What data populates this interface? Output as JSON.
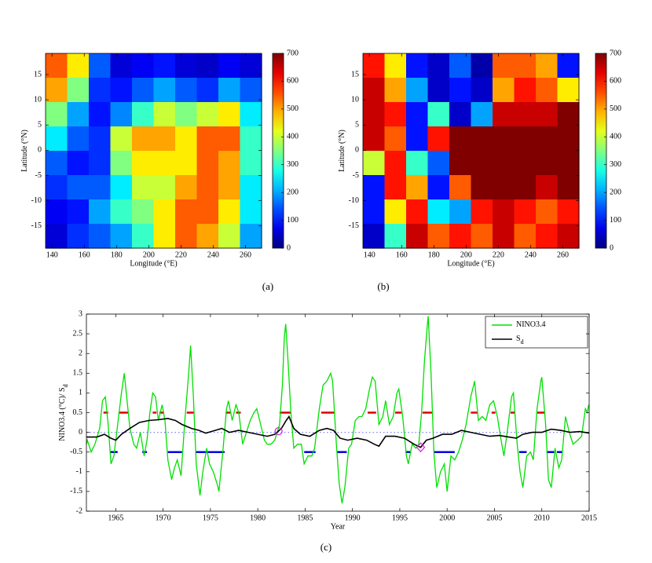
{
  "chart_data": [
    {
      "type": "heatmap",
      "panel_label": "(a)",
      "xlabel": "Longitude (°E)",
      "ylabel": "Latitude (°N)",
      "colormap": "jet",
      "xlim": [
        136,
        270
      ],
      "ylim": [
        -19.4,
        19.2
      ],
      "xticks": [
        140,
        160,
        180,
        200,
        220,
        240,
        260
      ],
      "yticks": [
        -15,
        -10,
        -5,
        0,
        5,
        10,
        15
      ],
      "clim": [
        0,
        700
      ],
      "cticks": [
        0,
        100,
        200,
        300,
        400,
        500,
        600,
        700
      ],
      "z": [
        [
          550,
          450,
          150,
          60,
          80,
          100,
          60,
          50,
          80,
          60
        ],
        [
          500,
          350,
          120,
          100,
          150,
          200,
          150,
          120,
          200,
          150
        ],
        [
          350,
          200,
          100,
          180,
          300,
          400,
          350,
          400,
          450,
          250
        ],
        [
          250,
          150,
          120,
          400,
          500,
          500,
          450,
          550,
          550,
          300
        ],
        [
          150,
          100,
          120,
          350,
          450,
          450,
          450,
          550,
          500,
          300
        ],
        [
          120,
          150,
          150,
          250,
          400,
          400,
          500,
          550,
          500,
          250
        ],
        [
          80,
          100,
          200,
          300,
          350,
          450,
          550,
          550,
          450,
          250
        ],
        [
          60,
          120,
          150,
          200,
          300,
          450,
          550,
          500,
          400,
          200
        ]
      ]
    },
    {
      "type": "heatmap",
      "panel_label": "(b)",
      "xlabel": "Longitude (°E)",
      "ylabel": "Latitude (°N)",
      "colormap": "jet",
      "xlim": [
        136,
        270
      ],
      "ylim": [
        -19.4,
        19.2
      ],
      "xticks": [
        140,
        160,
        180,
        200,
        220,
        240,
        260
      ],
      "yticks": [
        -15,
        -10,
        -5,
        0,
        5,
        10,
        15
      ],
      "clim": [
        0,
        700
      ],
      "cticks": [
        0,
        100,
        200,
        300,
        400,
        500,
        600,
        700
      ],
      "z": [
        [
          600,
          450,
          100,
          50,
          150,
          30,
          550,
          550,
          500,
          100
        ],
        [
          650,
          500,
          200,
          50,
          100,
          50,
          500,
          600,
          550,
          450
        ],
        [
          650,
          600,
          100,
          300,
          50,
          200,
          650,
          650,
          650,
          700
        ],
        [
          650,
          550,
          100,
          600,
          700,
          700,
          700,
          700,
          700,
          700
        ],
        [
          400,
          600,
          300,
          150,
          700,
          700,
          700,
          700,
          700,
          700
        ],
        [
          100,
          600,
          500,
          100,
          550,
          700,
          700,
          700,
          650,
          700
        ],
        [
          100,
          450,
          600,
          250,
          200,
          600,
          650,
          600,
          550,
          600
        ],
        [
          50,
          300,
          650,
          550,
          600,
          550,
          650,
          550,
          600,
          650
        ]
      ]
    },
    {
      "type": "line",
      "panel_label": "(c)",
      "xlabel": "Year",
      "ylabel": "NINO3.4 (°C)/ S",
      "ylabel_sub": "d",
      "xlim": [
        1961.9,
        2015
      ],
      "ylim": [
        -2,
        3
      ],
      "xticks": [
        1965,
        1970,
        1975,
        1980,
        1985,
        1990,
        1995,
        2000,
        2005,
        2010,
        2015
      ],
      "yticks": [
        -2,
        -1.5,
        -1,
        -0.5,
        0,
        0.5,
        1,
        1.5,
        2,
        2.5,
        3
      ],
      "reference_line": {
        "y": 0,
        "color": "#8080ff"
      },
      "series": [
        {
          "name": "NINO3.4",
          "color": "#00e000",
          "x": [
            1961.9,
            1962.0,
            1962.4,
            1962.8,
            1963.3,
            1963.6,
            1963.9,
            1964.2,
            1964.5,
            1964.8,
            1965.2,
            1965.6,
            1965.9,
            1966.2,
            1966.5,
            1966.9,
            1967.2,
            1967.6,
            1968.0,
            1968.3,
            1968.6,
            1968.9,
            1969.2,
            1969.5,
            1969.9,
            1970.2,
            1970.5,
            1970.9,
            1971.2,
            1971.5,
            1971.9,
            1972.3,
            1972.7,
            1972.9,
            1973.2,
            1973.5,
            1973.9,
            1974.2,
            1974.6,
            1974.9,
            1975.3,
            1975.7,
            1975.9,
            1976.3,
            1976.7,
            1976.9,
            1977.3,
            1977.7,
            1978.0,
            1978.4,
            1978.8,
            1979.2,
            1979.6,
            1979.9,
            1980.3,
            1980.7,
            1981.0,
            1981.4,
            1981.8,
            1982.3,
            1982.6,
            1982.8,
            1982.95,
            1983.2,
            1983.5,
            1983.8,
            1984.2,
            1984.6,
            1984.9,
            1985.3,
            1985.7,
            1986.0,
            1986.5,
            1986.9,
            1987.3,
            1987.7,
            1987.9,
            1988.3,
            1988.6,
            1988.9,
            1989.2,
            1989.6,
            1989.9,
            1990.3,
            1990.7,
            1991.0,
            1991.4,
            1991.8,
            1992.1,
            1992.4,
            1992.8,
            1993.2,
            1993.5,
            1993.9,
            1994.3,
            1994.7,
            1994.9,
            1995.3,
            1995.7,
            1995.9,
            1996.3,
            1996.7,
            1997.0,
            1997.3,
            1997.6,
            1997.9,
            1998.0,
            1998.3,
            1998.6,
            1998.9,
            1999.3,
            1999.7,
            2000.0,
            2000.4,
            2000.8,
            2001.2,
            2001.6,
            2002.0,
            2002.5,
            2002.9,
            2003.3,
            2003.7,
            2004.1,
            2004.5,
            2004.9,
            2005.3,
            2005.7,
            2006.0,
            2006.4,
            2006.8,
            2007.0,
            2007.4,
            2007.7,
            2008.0,
            2008.4,
            2008.8,
            2009.1,
            2009.5,
            2009.9,
            2010.0,
            2010.4,
            2010.7,
            2011.0,
            2011.4,
            2011.8,
            2012.1,
            2012.5,
            2012.9,
            2013.3,
            2013.8,
            2014.2,
            2014.6,
            2014.8,
            2014.95
          ],
          "values": [
            -0.3,
            -0.2,
            -0.5,
            -0.3,
            0.1,
            0.8,
            0.9,
            0.2,
            -0.8,
            -0.6,
            0.2,
            1.0,
            1.5,
            0.8,
            0.1,
            -0.3,
            -0.4,
            0.0,
            -0.6,
            -0.2,
            0.5,
            1.0,
            0.9,
            0.3,
            0.7,
            0.3,
            -0.7,
            -1.2,
            -0.9,
            -0.7,
            -1.1,
            0.3,
            1.5,
            2.2,
            0.9,
            -0.8,
            -1.6,
            -1.0,
            -0.4,
            -0.8,
            -1.0,
            -1.3,
            -1.5,
            -0.5,
            0.6,
            0.8,
            0.3,
            0.7,
            0.5,
            -0.3,
            0.0,
            0.3,
            0.5,
            0.6,
            0.2,
            -0.2,
            -0.3,
            -0.3,
            -0.2,
            0.2,
            1.2,
            2.4,
            2.75,
            1.8,
            0.5,
            -0.4,
            -0.3,
            -0.3,
            -0.8,
            -0.6,
            -0.6,
            -0.4,
            0.6,
            1.2,
            1.3,
            1.5,
            1.3,
            -0.3,
            -1.3,
            -1.8,
            -1.4,
            -0.4,
            -0.3,
            0.3,
            0.4,
            0.4,
            0.6,
            1.1,
            1.4,
            1.3,
            0.2,
            0.4,
            0.8,
            0.2,
            0.4,
            1.0,
            1.1,
            0.4,
            -0.6,
            -0.8,
            -0.3,
            -0.4,
            -0.3,
            0.5,
            1.8,
            2.7,
            2.95,
            1.5,
            -0.5,
            -1.4,
            -1.0,
            -0.8,
            -1.5,
            -0.6,
            -0.7,
            -0.5,
            -0.2,
            0.2,
            0.9,
            1.3,
            0.3,
            0.4,
            0.3,
            0.7,
            0.8,
            0.4,
            -0.2,
            -0.6,
            0.1,
            0.9,
            1.0,
            -0.3,
            -1.0,
            -1.4,
            -0.6,
            -0.5,
            -0.7,
            0.6,
            1.3,
            1.4,
            0.2,
            -1.2,
            -1.4,
            -0.4,
            -0.9,
            -0.7,
            0.4,
            0.0,
            -0.3,
            -0.2,
            -0.1,
            0.6,
            0.5,
            0.7
          ]
        },
        {
          "name": "S",
          "name_sub": "d",
          "color": "#000000",
          "x": [
            1961.9,
            1963,
            1963.8,
            1964.5,
            1965,
            1965.6,
            1966.5,
            1967.5,
            1968.5,
            1969.5,
            1970.5,
            1971.3,
            1972.0,
            1973,
            1973.8,
            1974.5,
            1975.5,
            1976.2,
            1977,
            1978,
            1979,
            1980,
            1981,
            1981.8,
            1982.5,
            1983,
            1983.3,
            1983.8,
            1984.5,
            1985.5,
            1986.5,
            1987.3,
            1988,
            1988.7,
            1989.5,
            1990.5,
            1991.5,
            1992.3,
            1992.8,
            1993.5,
            1994.5,
            1995.5,
            1996.5,
            1997.2,
            1997.8,
            1998.5,
            1999.5,
            2000.5,
            2001.5,
            2002.5,
            2003.5,
            2004.5,
            2005.5,
            2006.5,
            2007.3,
            2008,
            2009,
            2010,
            2011,
            2012,
            2013,
            2014,
            2015
          ],
          "values": [
            -0.12,
            -0.12,
            -0.05,
            -0.15,
            -0.2,
            -0.05,
            0.1,
            0.25,
            0.3,
            0.32,
            0.35,
            0.3,
            0.2,
            0.1,
            0.05,
            -0.02,
            0.05,
            0.1,
            0.0,
            0.05,
            0.0,
            -0.05,
            -0.1,
            -0.05,
            0.1,
            0.3,
            0.4,
            0.1,
            -0.05,
            -0.1,
            0.05,
            0.1,
            0.05,
            -0.15,
            -0.2,
            -0.15,
            -0.2,
            -0.3,
            -0.35,
            -0.1,
            -0.1,
            -0.15,
            -0.3,
            -0.38,
            -0.2,
            -0.15,
            -0.05,
            -0.05,
            0.05,
            0.0,
            -0.05,
            -0.1,
            -0.08,
            -0.12,
            -0.15,
            -0.05,
            0.0,
            0.0,
            0.08,
            0.05,
            0.0,
            0.02,
            -0.02
          ]
        }
      ],
      "warm_events": {
        "color": "#dd0000",
        "level": 0.5,
        "x": [
          [
            1963.7,
            1964.2
          ],
          [
            1965.3,
            1966.3
          ],
          [
            1968.9,
            1969.3
          ],
          [
            1969.6,
            1970.1
          ],
          [
            1972.5,
            1973.3
          ],
          [
            1976.6,
            1977.1
          ],
          [
            1977.7,
            1978.2
          ],
          [
            1982.3,
            1983.5
          ],
          [
            1986.7,
            1988.1
          ],
          [
            1991.6,
            1992.5
          ],
          [
            1994.5,
            1995.2
          ],
          [
            1997.4,
            1998.4
          ],
          [
            2002.5,
            2003.2
          ],
          [
            2004.7,
            2005.1
          ],
          [
            2006.7,
            2007.2
          ],
          [
            2009.5,
            2010.3
          ]
        ]
      },
      "cold_events": {
        "color": "#0000dd",
        "level": -0.5,
        "x": [
          [
            1964.4,
            1965.2
          ],
          [
            1967.8,
            1968.3
          ],
          [
            1970.5,
            1972.0
          ],
          [
            1973.4,
            1976.5
          ],
          [
            1984.9,
            1986.1
          ],
          [
            1988.4,
            1989.4
          ],
          [
            1995.6,
            1996.2
          ],
          [
            1998.6,
            2000.8
          ],
          [
            2007.6,
            2008.4
          ],
          [
            2010.5,
            2011.3
          ],
          [
            2011.6,
            2012.2
          ]
        ]
      },
      "markers": [
        {
          "shape": "circle",
          "x": 1982.2,
          "y": 0.03,
          "color": "#e020e0"
        },
        {
          "shape": "diamond",
          "x": 1997.2,
          "y": -0.38,
          "color": "#e020e0"
        }
      ]
    }
  ]
}
